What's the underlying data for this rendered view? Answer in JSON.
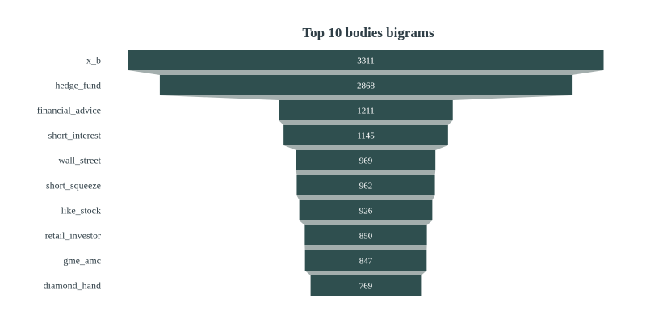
{
  "chart_data": {
    "type": "funnel",
    "title": "Top 10 bodies bigrams",
    "categories": [
      "x_b",
      "hedge_fund",
      "financial_advice",
      "short_interest",
      "wall_street",
      "short_squeeze",
      "like_stock",
      "retail_investor",
      "gme_amc",
      "diamond_hand"
    ],
    "values": [
      3311,
      2868,
      1211,
      1145,
      969,
      962,
      926,
      850,
      847,
      769
    ],
    "xlabel": "",
    "ylabel": "",
    "grid": false,
    "legend": "none"
  },
  "colors": {
    "bar": "#2f4f4f",
    "connector": "#a3aead",
    "text_light": "#ffffff",
    "text_dark": "#2f3e46"
  }
}
